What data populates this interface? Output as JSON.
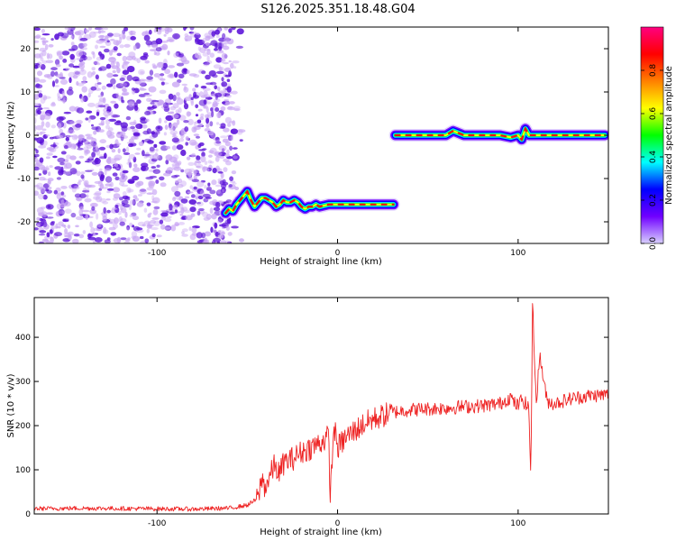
{
  "title": "S126.2025.351.18.48.G04",
  "colors": {
    "trace": "#ee2222",
    "noise_dark": "#5a10d8",
    "noise_light": "#c9a6f4",
    "colorbar_stops": [
      "#d8d0ff",
      "#7000ff",
      "#0000ff",
      "#00ffff",
      "#00ff00",
      "#ffff00",
      "#ff8000",
      "#ff0000",
      "#ff0080"
    ]
  },
  "chart_data": [
    {
      "type": "heatmap",
      "xlabel": "Height of straight line (km)",
      "ylabel": "Frequency (Hz)",
      "colorbar_label": "Normalized spectral amplitude",
      "xlim": [
        -168,
        150
      ],
      "ylim": [
        -25,
        25
      ],
      "x_ticks": [
        -100,
        0,
        100
      ],
      "y_ticks": [
        20,
        10,
        0,
        -10,
        -20
      ],
      "colorbar_ticks": [
        0.0,
        0.2,
        0.4,
        0.6,
        0.8
      ],
      "colorbar_range": [
        0,
        1
      ],
      "noise_region_x": [
        -168,
        -56
      ],
      "signal_track": {
        "x": [
          -62,
          -60,
          -58,
          -56,
          -54,
          -52,
          -50,
          -48,
          -46,
          -44,
          -42,
          -40,
          -38,
          -36,
          -34,
          -32,
          -30,
          -28,
          -26,
          -24,
          -22,
          -20,
          -18,
          -16,
          -14,
          -12,
          -10,
          -5,
          0,
          5,
          10,
          15,
          20,
          25,
          31
        ],
        "y": [
          -18,
          -17,
          -17.5,
          -16,
          -15,
          -14,
          -13,
          -15,
          -16.5,
          -15.5,
          -14.5,
          -14.5,
          -15,
          -15.5,
          -16.5,
          -16,
          -15,
          -15.5,
          -15.5,
          -15,
          -15.5,
          -16.5,
          -17,
          -16.5,
          -16.5,
          -16,
          -16.5,
          -16,
          -16,
          -16,
          -16,
          -16,
          -16,
          -16,
          -16
        ]
      },
      "signal_track_2": {
        "x": [
          32,
          40,
          50,
          60,
          64,
          70,
          80,
          90,
          96,
          100,
          102,
          104,
          106,
          110,
          120,
          130,
          140,
          148
        ],
        "y": [
          0,
          0,
          0,
          0,
          1,
          0,
          0,
          0,
          -0.5,
          0,
          -1,
          1.5,
          0,
          0,
          0,
          0,
          0,
          0
        ]
      },
      "grid": false
    },
    {
      "type": "line",
      "xlabel": "Height of straight line (km)",
      "ylabel": "SNR (10 * v/v)",
      "xlim": [
        -168,
        150
      ],
      "ylim": [
        0,
        490
      ],
      "x_ticks": [
        -100,
        0,
        100
      ],
      "y_ticks": [
        0,
        100,
        200,
        300,
        400
      ],
      "series": [
        {
          "x": [
            -168,
            -140,
            -110,
            -80,
            -60,
            -50,
            -44,
            -42,
            -40,
            -35,
            -32,
            -30,
            -25,
            -20,
            -15,
            -10,
            -5,
            -4,
            -2,
            0,
            5,
            10,
            15,
            20,
            25,
            30,
            35,
            40,
            50,
            60,
            70,
            80,
            90,
            96,
            98,
            100,
            102,
            106,
            107,
            108,
            110,
            112,
            116,
            120,
            130,
            140,
            150
          ],
          "y": [
            12,
            13,
            12,
            11,
            13,
            20,
            35,
            80,
            60,
            110,
            90,
            115,
            125,
            140,
            150,
            160,
            175,
            40,
            200,
            150,
            175,
            190,
            205,
            215,
            222,
            230,
            233,
            236,
            238,
            240,
            243,
            245,
            250,
            265,
            250,
            245,
            260,
            240,
            80,
            480,
            250,
            360,
            255,
            250,
            262,
            268,
            270
          ]
        }
      ],
      "grid": false
    }
  ]
}
